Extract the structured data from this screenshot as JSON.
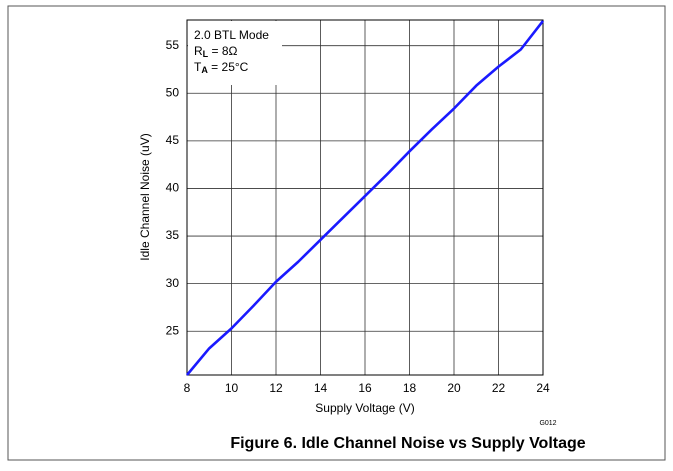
{
  "chart_data": {
    "type": "line",
    "caption": "Figure 6. Idle Channel Noise vs Supply Voltage",
    "figure_id": "G012",
    "x_label": "Supply Voltage (V)",
    "y_label": "Idle Channel Noise (uV)",
    "annotations": [
      [
        "2.0 BTL Mode"
      ],
      [
        "R",
        "L",
        " = 8Ω"
      ],
      [
        "T",
        "A",
        " = 25°C"
      ]
    ],
    "x": [
      8,
      9,
      10,
      11,
      12,
      13,
      14,
      15,
      16,
      17,
      18,
      19,
      20,
      21,
      22,
      23,
      24
    ],
    "series": [
      {
        "name": "Idle Channel Noise",
        "color": "#1a1aff",
        "values": [
          20.4,
          23.2,
          25.3,
          27.7,
          30.2,
          32.3,
          34.6,
          36.9,
          39.2,
          41.5,
          43.9,
          46.2,
          48.4,
          50.8,
          52.8,
          54.6,
          57.6
        ]
      }
    ],
    "xlim": [
      8,
      24
    ],
    "xticks": [
      8,
      10,
      12,
      14,
      16,
      18,
      20,
      22,
      24
    ],
    "ylim": [
      20.4,
      57.7
    ],
    "yticks": [
      25,
      30,
      35,
      40,
      45,
      50,
      55
    ],
    "grid": true
  }
}
